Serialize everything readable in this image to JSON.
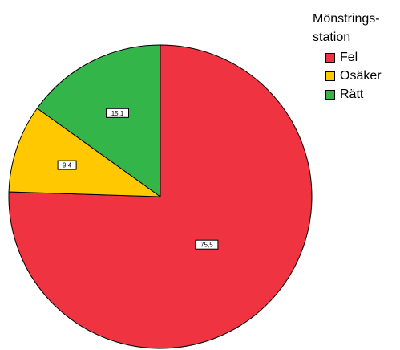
{
  "chart_data": {
    "type": "pie",
    "categories": [
      "Fel",
      "Osäker",
      "Rätt"
    ],
    "values": [
      75.5,
      9.4,
      15.1
    ],
    "value_labels": [
      "75,5",
      "9,4",
      "15,1"
    ],
    "colors": [
      "#ef3340",
      "#ffc800",
      "#33b54a"
    ],
    "start": "12 o'clock, clockwise",
    "legend": {
      "title_lines": [
        "Mönstrings-",
        "station"
      ],
      "placement": "top-right"
    }
  }
}
